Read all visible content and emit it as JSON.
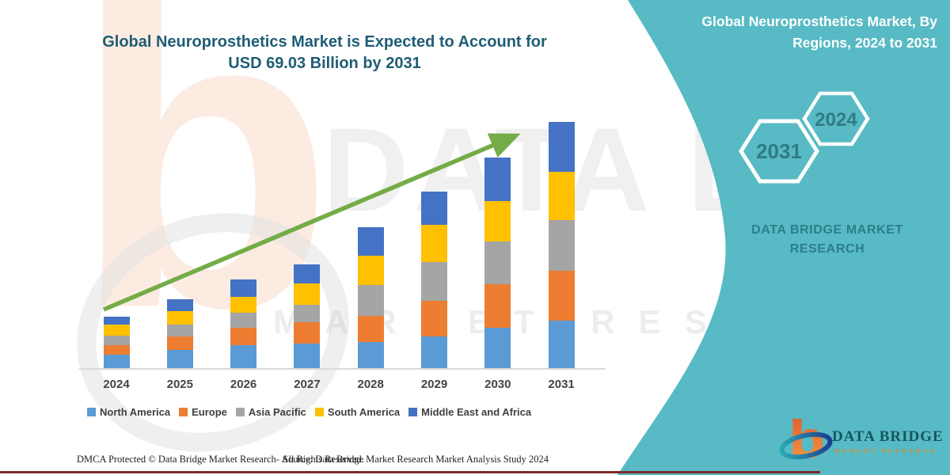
{
  "header": {
    "title_line1": "Global Neuroprosthetics Market is Expected to Account for",
    "title_line2": "USD 69.03 Billion by 2031"
  },
  "chart_data": {
    "type": "bar",
    "stacked": true,
    "unit": "USD Billion",
    "categories": [
      "2024",
      "2025",
      "2026",
      "2027",
      "2028",
      "2029",
      "2030",
      "2031"
    ],
    "series": [
      {
        "name": "North America",
        "color": "#5B9BD5",
        "values": [
          4.0,
          5.3,
          6.7,
          7.1,
          7.5,
          9.1,
          11.5,
          13.6
        ]
      },
      {
        "name": "Europe",
        "color": "#ED7D31",
        "values": [
          2.7,
          3.8,
          4.7,
          6.0,
          7.3,
          10.0,
          12.2,
          13.8
        ]
      },
      {
        "name": "Asia Pacific",
        "color": "#A5A5A5",
        "values": [
          2.7,
          3.3,
          4.4,
          4.9,
          8.7,
          10.7,
          12.0,
          14.2
        ]
      },
      {
        "name": "South America",
        "color": "#FFC000",
        "values": [
          2.9,
          3.8,
          4.4,
          5.8,
          8.2,
          10.4,
          11.3,
          13.4
        ]
      },
      {
        "name": "Middle East and Africa",
        "color": "#4472C4",
        "values": [
          2.4,
          3.3,
          4.7,
          5.5,
          7.8,
          9.3,
          12.0,
          14.03
        ]
      }
    ],
    "totals": [
      14.7,
      19.5,
      24.9,
      29.3,
      39.5,
      49.5,
      59.0,
      69.03
    ],
    "ylim": [
      0,
      69.03
    ],
    "y_axis_visible": false,
    "grid": false,
    "legend_position": "bottom",
    "trend_arrow": true
  },
  "right_panel": {
    "heading_line1": "Global Neuroprosthetics Market, By",
    "heading_line2": "Regions, 2024 to 2031",
    "hexagons": [
      {
        "label": "2031"
      },
      {
        "label": "2024"
      }
    ],
    "brand_line1": "DATA BRIDGE MARKET",
    "brand_line2": "RESEARCH"
  },
  "logo": {
    "glyph": "b",
    "name": "DATA BRIDGE",
    "tagline": "MARKET RESEARCH"
  },
  "watermark": {
    "glyph": "b",
    "title": "DATA BRIDGE",
    "subtitle": "MARKET RESEARCH"
  },
  "footer": {
    "left": "DMCA Protected © Data Bridge Market Research-  All Rights Reserved.",
    "right": "Source: Data Bridge Market Research Market Analysis Study 2024"
  },
  "colors": {
    "teal_bg": "#57BAC4",
    "arrow_green": "#74AC48",
    "hexagon_stroke": "#FDFEFE",
    "hexagon_text": "#2F7B87",
    "title_text": "#1F5D75",
    "bottom_line": "#7E2A2A"
  }
}
